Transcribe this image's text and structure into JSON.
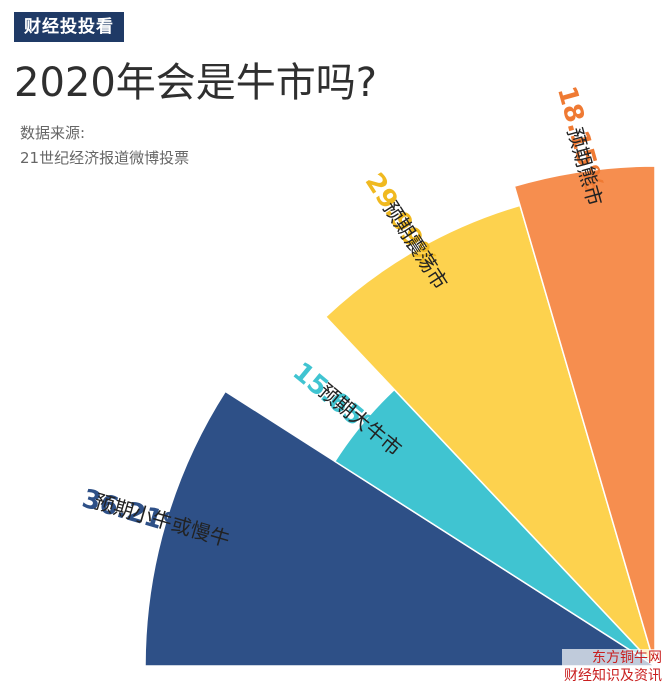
{
  "header": {
    "tag": "财经投投看",
    "title": "2020年会是牛市吗?",
    "source_line1": "数据来源:",
    "source_line2": "21世纪经济报道微博投票"
  },
  "chart_data": {
    "type": "pie",
    "slices": [
      {
        "label": "预期小牛或慢牛",
        "value": 36.21,
        "value_text": "36.21%",
        "color": "#2e5087",
        "value_color": "#2e5087"
      },
      {
        "label": "预期大牛市",
        "value": 15.65,
        "value_text": "15.65%",
        "color": "#40c4d1",
        "value_color": "#40c4d1"
      },
      {
        "label": "预期震荡市",
        "value": 29.99,
        "value_text": "29.99%",
        "color": "#fdd24e",
        "value_color": "#f0b920"
      },
      {
        "label": "预期熊市",
        "value": 18.15,
        "value_text": "18.15%",
        "color": "#f68e4f",
        "value_color": "#ef7a33"
      }
    ]
  },
  "watermark": {
    "top": "东方铜牛网",
    "bottom": "财经知识及资讯"
  }
}
